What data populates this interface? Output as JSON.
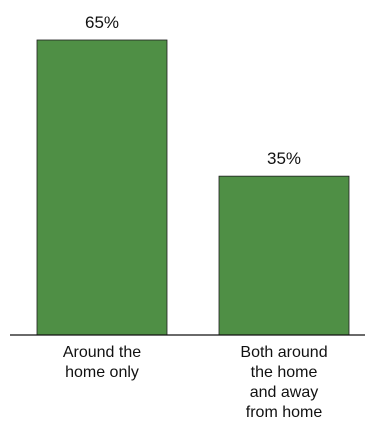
{
  "chart_data": {
    "type": "bar",
    "categories": [
      "Around the home only",
      "Both around the home and away from home"
    ],
    "category_lines": [
      [
        "Around the",
        "home only"
      ],
      [
        "Both around",
        "the home",
        "and away",
        "from home"
      ]
    ],
    "values": [
      65,
      35
    ],
    "value_labels": [
      "65%",
      "35%"
    ],
    "title": "",
    "xlabel": "",
    "ylabel": "",
    "ylim": [
      0,
      65
    ],
    "grid": false,
    "bar_color": "#4f8f45",
    "bar_edge_color": "#1f1f1f"
  }
}
